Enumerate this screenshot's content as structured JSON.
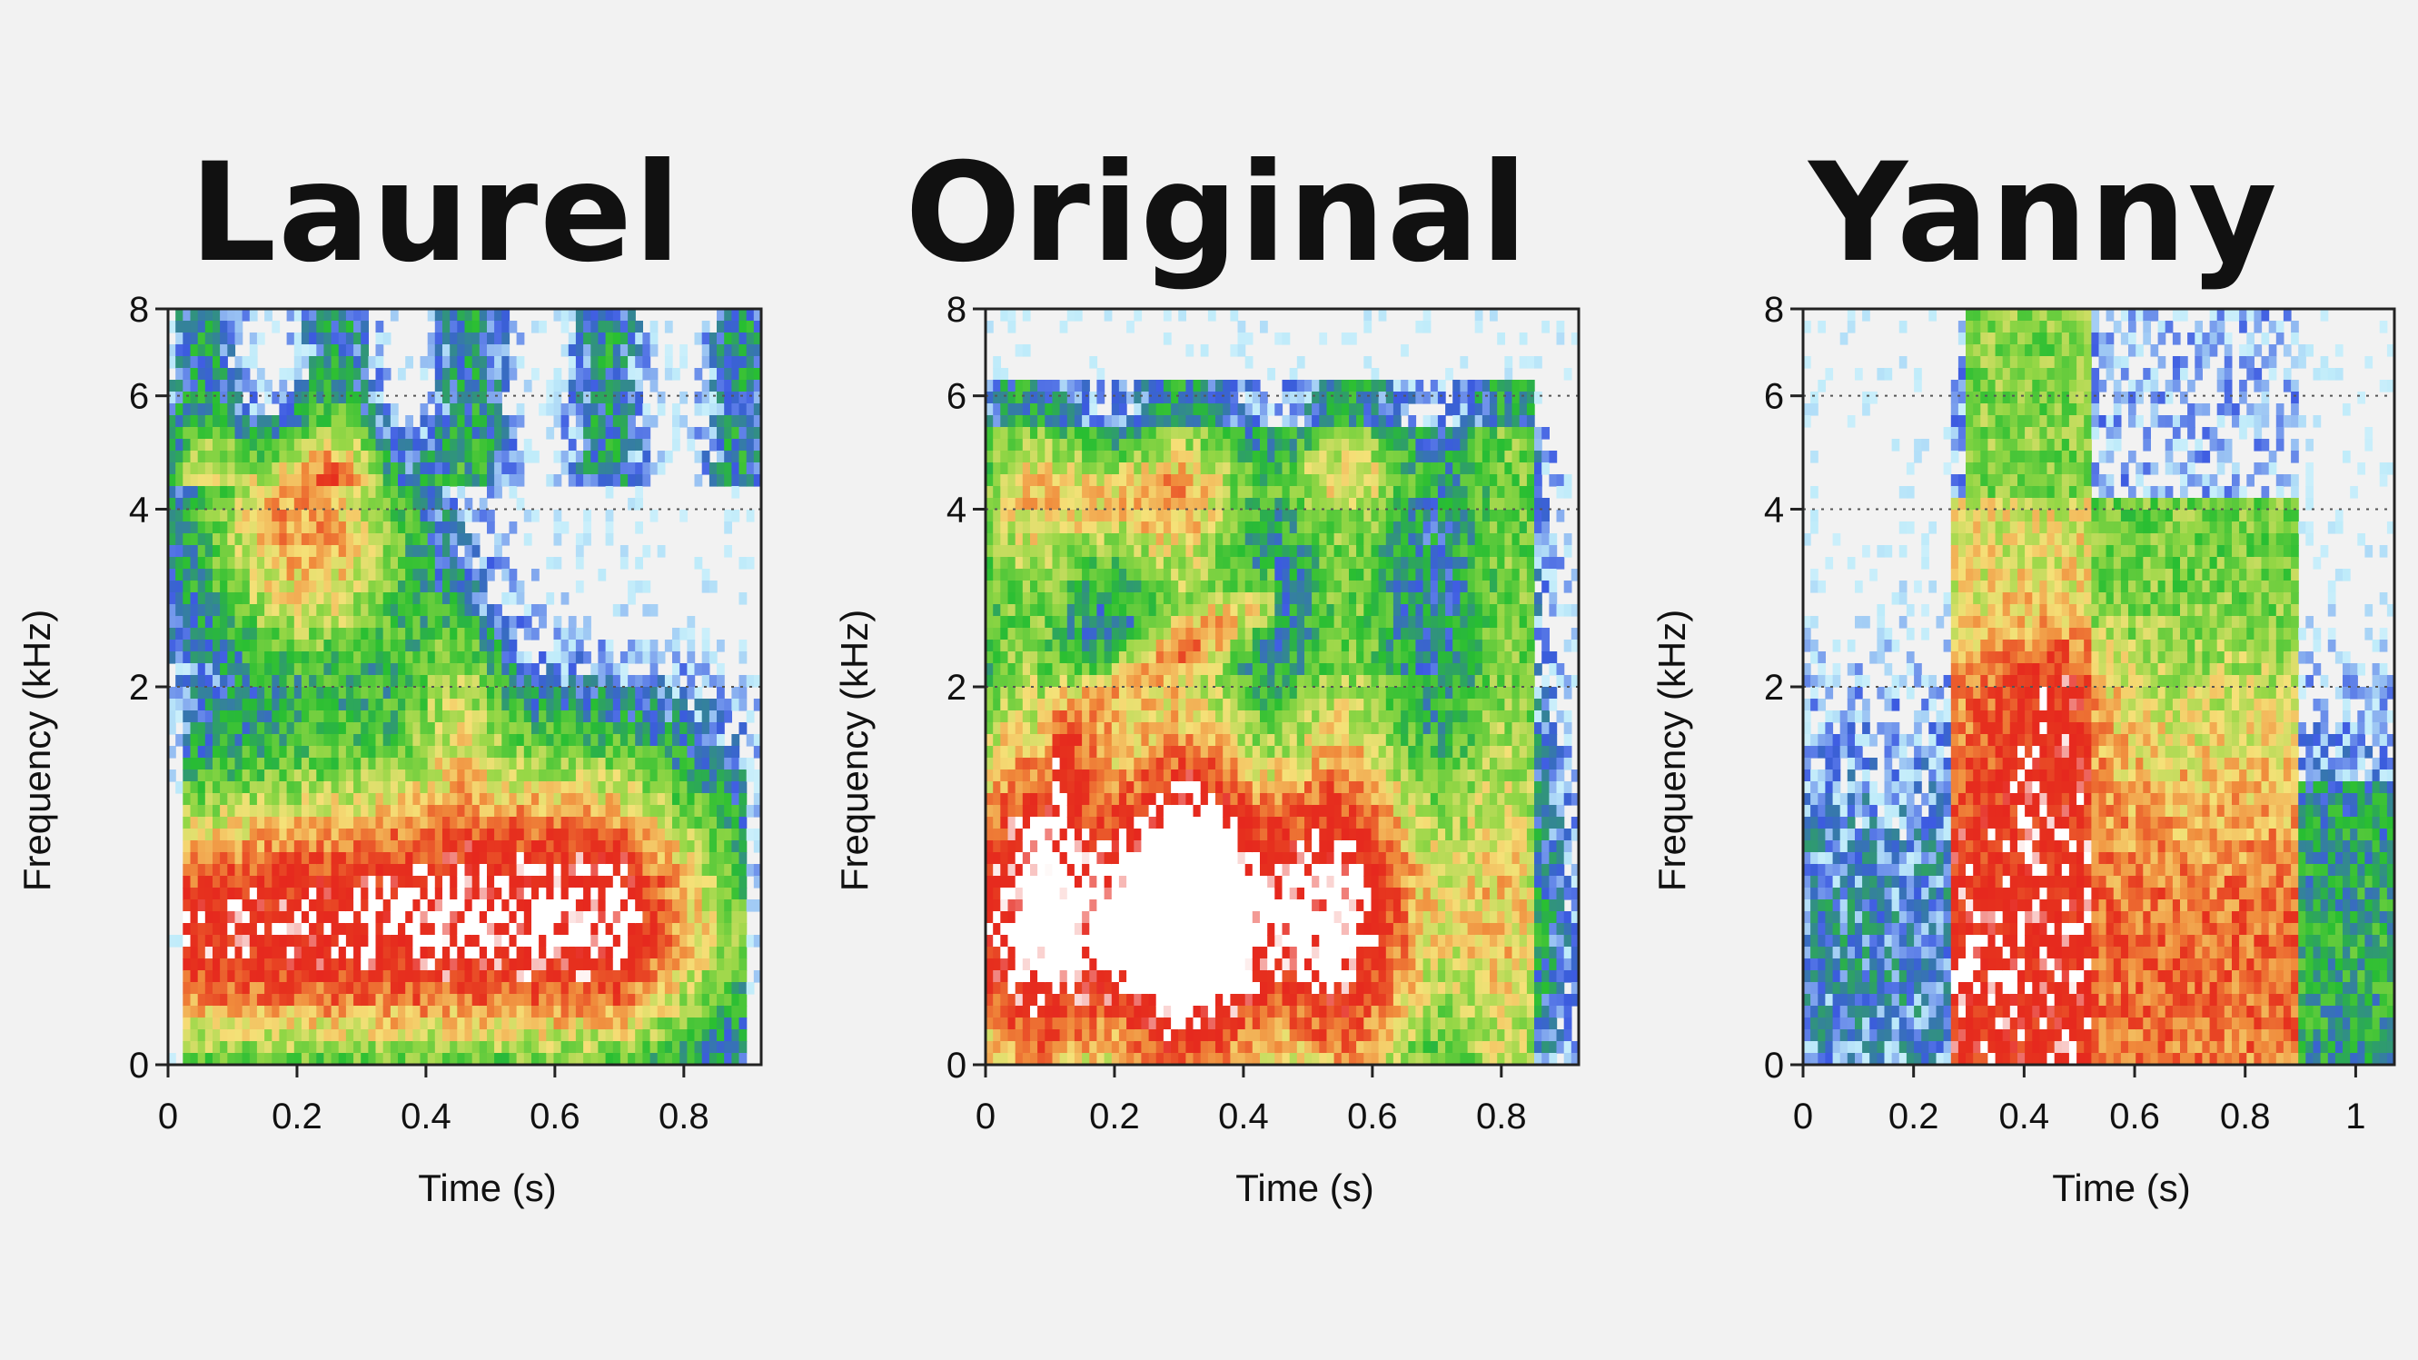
{
  "chart_data": [
    {
      "type": "heatmap",
      "title": "Laurel",
      "xlabel": "Time (s)",
      "ylabel": "Frequency (kHz)",
      "xlim": [
        0,
        0.92
      ],
      "ylim": [
        0,
        8
      ],
      "y_scale": "nonlinear (0, 2, 4, 6, 8 tick positions)",
      "xticks": [
        "0",
        "0.2",
        "0.4",
        "0.6",
        "0.8"
      ],
      "xtick_values": [
        0,
        0.2,
        0.4,
        0.6,
        0.8
      ],
      "yticks": [
        "0",
        "2",
        "4",
        "6",
        "8"
      ],
      "ytick_values": [
        0,
        2,
        4,
        6,
        8
      ],
      "grid_lines_kHz": [
        2,
        4,
        6
      ],
      "colormap": [
        "#ffffff",
        "#3a55e0",
        "#2fbf2f",
        "#f5e070",
        "#f28a30",
        "#e8301e",
        "#ffffff"
      ],
      "energy_regions": [
        {
          "t_start": 0.02,
          "t_end": 0.9,
          "f_low": 0,
          "f_high": 1.6,
          "level": "high",
          "peak_t": 0.23,
          "peak_f": 0.8
        },
        {
          "t_start": 0.05,
          "t_end": 0.5,
          "f_low": 2,
          "f_high": 5,
          "level": "medium"
        },
        {
          "t_start": 0.0,
          "t_end": 0.92,
          "f_low": 5,
          "f_high": 8,
          "level": "low"
        }
      ]
    },
    {
      "type": "heatmap",
      "title": "Original",
      "xlabel": "Time (s)",
      "ylabel": "Frequency (kHz)",
      "xlim": [
        0,
        0.92
      ],
      "ylim": [
        0,
        8
      ],
      "xticks": [
        "0",
        "0.2",
        "0.4",
        "0.6",
        "0.8"
      ],
      "xtick_values": [
        0,
        0.2,
        0.4,
        0.6,
        0.8
      ],
      "yticks": [
        "0",
        "2",
        "4",
        "6",
        "8"
      ],
      "ytick_values": [
        0,
        2,
        4,
        6,
        8
      ],
      "grid_lines_kHz": [
        2,
        4,
        6
      ],
      "energy_regions": [
        {
          "t_start": 0.0,
          "t_end": 0.92,
          "f_low": 0,
          "f_high": 1.8,
          "level": "high",
          "peak_t": 0.24,
          "peak_f": 0.9
        },
        {
          "t_start": 0.05,
          "t_end": 0.9,
          "f_low": 2,
          "f_high": 6.2,
          "level": "medium",
          "peak_t": 0.15,
          "peak_f": 4.2
        },
        {
          "t_start": 0.0,
          "t_end": 0.92,
          "f_low": 6.2,
          "f_high": 8,
          "level": "none"
        }
      ]
    },
    {
      "type": "heatmap",
      "title": "Yanny",
      "xlabel": "Time (s)",
      "ylabel": "Frequency (kHz)",
      "xlim": [
        0,
        1.07
      ],
      "ylim": [
        0,
        8
      ],
      "xticks": [
        "0",
        "0.2",
        "0.4",
        "0.6",
        "0.8",
        "1"
      ],
      "xtick_values": [
        0,
        0.2,
        0.4,
        0.6,
        0.8,
        1.0
      ],
      "yticks": [
        "0",
        "2",
        "4",
        "6",
        "8"
      ],
      "ytick_values": [
        0,
        2,
        4,
        6,
        8
      ],
      "grid_lines_kHz": [
        2,
        4,
        6
      ],
      "energy_regions": [
        {
          "t_start": 0.28,
          "t_end": 0.88,
          "f_low": 0,
          "f_high": 4.5,
          "level": "high",
          "peak_t": 0.38,
          "peak_f": 0.5
        },
        {
          "t_start": 0.3,
          "t_end": 0.52,
          "f_low": 0,
          "f_high": 8,
          "level": "medium"
        },
        {
          "t_start": 0.05,
          "t_end": 1.05,
          "f_low": 0,
          "f_high": 1.5,
          "level": "low"
        }
      ]
    }
  ]
}
